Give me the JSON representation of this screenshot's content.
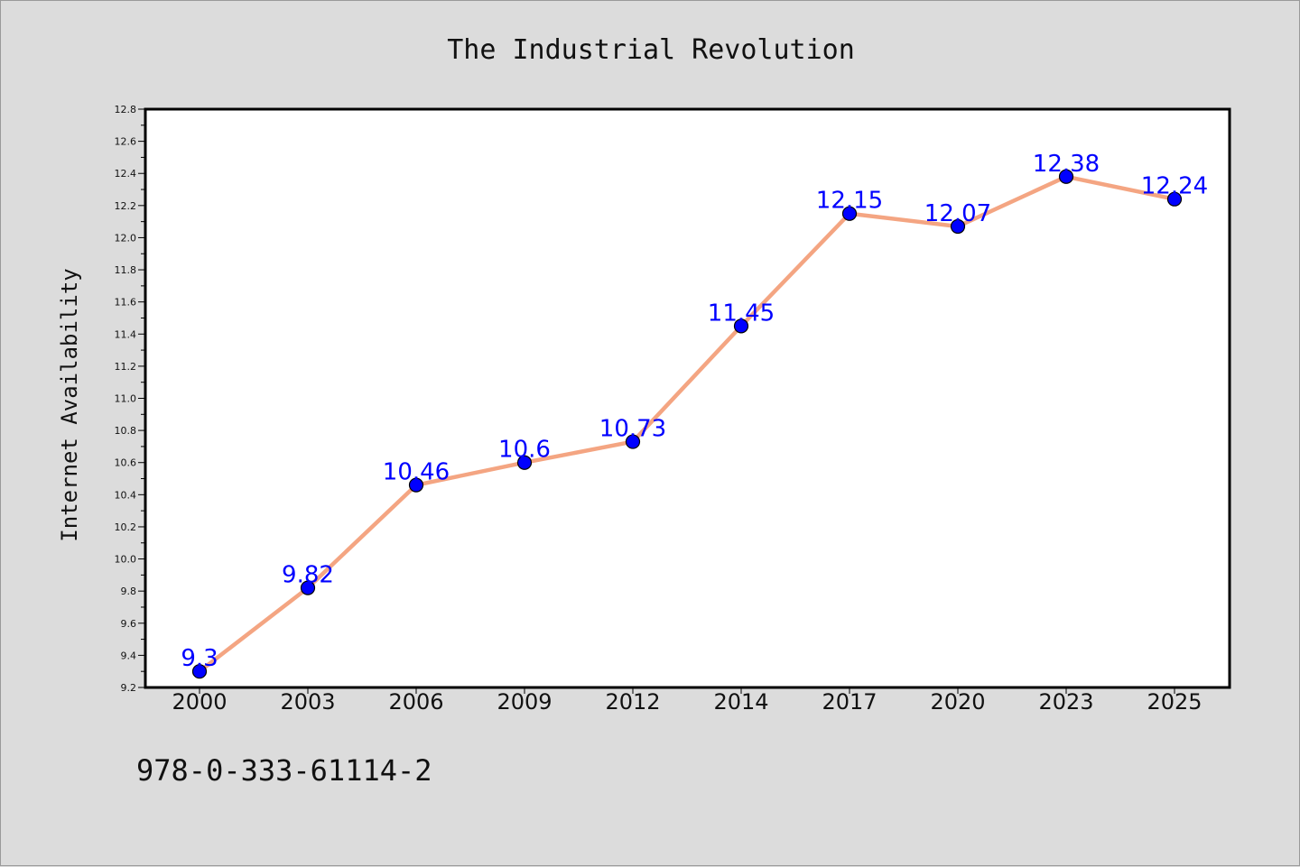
{
  "chart_data": {
    "type": "line",
    "title": "The Industrial Revolution",
    "xlabel": "",
    "ylabel": "Internet Availability",
    "categories": [
      "2000",
      "2003",
      "2006",
      "2009",
      "2012",
      "2014",
      "2017",
      "2020",
      "2023",
      "2025"
    ],
    "values": [
      9.3,
      9.82,
      10.46,
      10.6,
      10.73,
      11.45,
      12.15,
      12.07,
      12.38,
      12.24
    ],
    "data_labels": [
      "9.3",
      "9.82",
      "10.46",
      "10.6",
      "10.73",
      "11.45",
      "12.15",
      "12.07",
      "12.38",
      "12.24"
    ],
    "ylim": [
      9.2,
      12.8
    ],
    "yticks": [
      "9.2",
      "9.4",
      "9.6",
      "9.8",
      "10.0",
      "10.2",
      "10.4",
      "10.6",
      "10.8",
      "11.0",
      "11.2",
      "11.4",
      "11.6",
      "11.8",
      "12.0",
      "12.2",
      "12.4",
      "12.6",
      "12.8"
    ],
    "grid": false,
    "legend": "none",
    "line_color": "#f4a582",
    "marker_color": "#0000ff"
  },
  "footer": {
    "isbn": "978-0-333-61114-2"
  }
}
